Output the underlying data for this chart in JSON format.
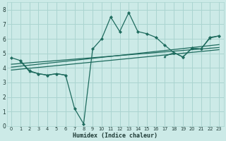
{
  "bg_color": "#cceae7",
  "grid_color": "#aad4d0",
  "line_color": "#1e6b5e",
  "xlabel": "Humidex (Indice chaleur)",
  "ylim": [
    0,
    8.5
  ],
  "xlim": [
    -0.5,
    23.5
  ],
  "yticks": [
    0,
    1,
    2,
    3,
    4,
    5,
    6,
    7,
    8
  ],
  "xticks": [
    0,
    1,
    2,
    3,
    4,
    5,
    6,
    7,
    8,
    9,
    10,
    11,
    12,
    13,
    14,
    15,
    16,
    17,
    18,
    19,
    20,
    21,
    22,
    23
  ],
  "xtick_labels": [
    "0",
    "1",
    "2",
    "3",
    "4",
    "5",
    "6",
    "7",
    "8",
    "9",
    "10",
    "11",
    "12",
    "13",
    "14",
    "15",
    "16",
    "17",
    "18",
    "19",
    "20",
    "21",
    "22",
    "23"
  ],
  "series": {
    "main": {
      "x": [
        0,
        1,
        2,
        3,
        4,
        5,
        6,
        7,
        8,
        9,
        10,
        11,
        12,
        13,
        14,
        15,
        16,
        17,
        18,
        19,
        20,
        21,
        22,
        23
      ],
      "y": [
        4.7,
        4.5,
        3.8,
        3.6,
        3.5,
        3.6,
        3.5,
        1.2,
        0.15,
        5.3,
        6.0,
        7.5,
        6.5,
        7.8,
        6.5,
        6.35,
        6.1,
        5.55,
        5.05,
        4.75,
        5.35,
        5.3,
        6.1,
        6.2
      ]
    },
    "trend1": {
      "x": [
        0,
        23
      ],
      "y": [
        4.25,
        5.4
      ]
    },
    "trend2": {
      "x": [
        0,
        23
      ],
      "y": [
        4.05,
        5.6
      ]
    },
    "trend3": {
      "x": [
        0,
        23
      ],
      "y": [
        3.85,
        5.25
      ]
    },
    "sub": {
      "x": [
        1,
        2,
        3,
        4,
        5,
        6,
        17,
        18,
        19,
        20,
        21,
        22,
        23
      ],
      "y": [
        4.45,
        3.75,
        3.6,
        3.5,
        3.6,
        3.5,
        4.8,
        5.05,
        4.75,
        5.35,
        5.3,
        6.05,
        6.2
      ]
    }
  }
}
